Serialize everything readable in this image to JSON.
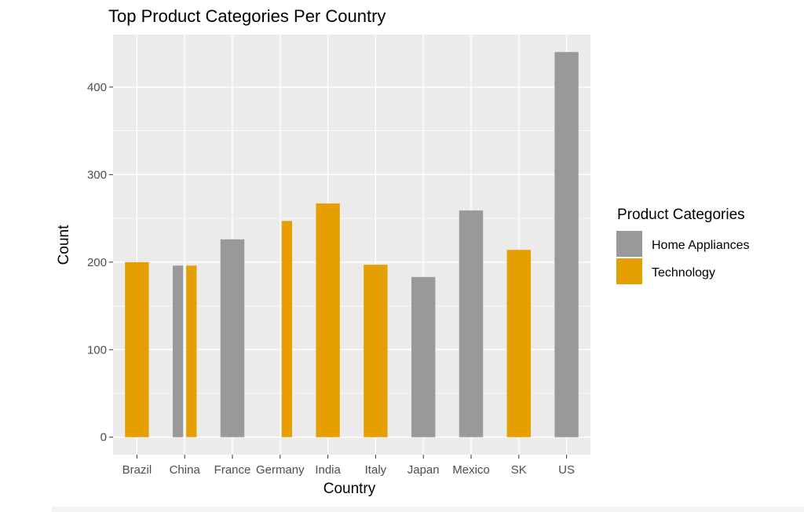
{
  "chart_data": {
    "type": "bar",
    "title": "Top Product Categories Per Country",
    "xlabel": "Country",
    "ylabel": "Count",
    "ylim": [
      -20,
      460
    ],
    "yticks": [
      0,
      100,
      200,
      300,
      400
    ],
    "grid": true,
    "legend_position": "right",
    "legend_title": "Product Categories",
    "categories": [
      "Brazil",
      "China",
      "France",
      "Germany",
      "India",
      "Italy",
      "Japan",
      "Mexico",
      "SK",
      "US"
    ],
    "series": [
      {
        "name": "Home Appliances",
        "color": "#999999",
        "values": [
          null,
          196,
          226,
          0,
          null,
          null,
          183,
          259,
          null,
          440
        ]
      },
      {
        "name": "Technology",
        "color": "#E69F00",
        "values": [
          200,
          196,
          null,
          247,
          267,
          197,
          null,
          null,
          214,
          null
        ]
      }
    ]
  }
}
